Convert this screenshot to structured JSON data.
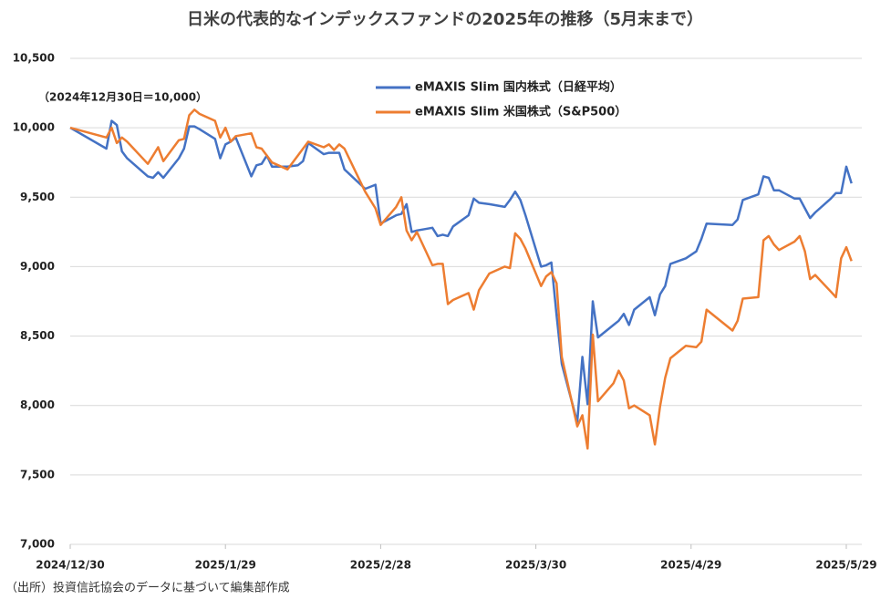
{
  "chart_data": {
    "type": "line",
    "title": "日米の代表的なインデックスファンドの2025年の推移（5月末まで）",
    "annotation": "（2024年12月30日＝10,000）",
    "source": "（出所）投資信託協会のデータに基づいて編集部作成",
    "x": [
      "2024/12/30",
      "2025/1/6",
      "2025/1/7",
      "2025/1/8",
      "2025/1/9",
      "2025/1/10",
      "2025/1/14",
      "2025/1/15",
      "2025/1/16",
      "2025/1/17",
      "2025/1/20",
      "2025/1/21",
      "2025/1/22",
      "2025/1/23",
      "2025/1/24",
      "2025/1/27",
      "2025/1/28",
      "2025/1/29",
      "2025/1/30",
      "2025/1/31",
      "2025/2/3",
      "2025/2/4",
      "2025/2/5",
      "2025/2/6",
      "2025/2/7",
      "2025/2/10",
      "2025/2/12",
      "2025/2/13",
      "2025/2/14",
      "2025/2/17",
      "2025/2/18",
      "2025/2/19",
      "2025/2/20",
      "2025/2/21",
      "2025/2/25",
      "2025/2/27",
      "2025/2/28",
      "2025/3/3",
      "2025/3/4",
      "2025/3/5",
      "2025/3/6",
      "2025/3/7",
      "2025/3/10",
      "2025/3/11",
      "2025/3/12",
      "2025/3/13",
      "2025/3/14",
      "2025/3/17",
      "2025/3/18",
      "2025/3/19",
      "2025/3/21",
      "2025/3/24",
      "2025/3/25",
      "2025/3/26",
      "2025/3/27",
      "2025/3/28",
      "2025/3/31",
      "2025/4/1",
      "2025/4/2",
      "2025/4/3",
      "2025/4/4",
      "2025/4/7",
      "2025/4/8",
      "2025/4/9",
      "2025/4/10",
      "2025/4/11",
      "2025/4/14",
      "2025/4/15",
      "2025/4/16",
      "2025/4/17",
      "2025/4/18",
      "2025/4/21",
      "2025/4/22",
      "2025/4/23",
      "2025/4/24",
      "2025/4/25",
      "2025/4/28",
      "2025/4/30",
      "2025/5/1",
      "2025/5/2",
      "2025/5/7",
      "2025/5/8",
      "2025/5/9",
      "2025/5/12",
      "2025/5/13",
      "2025/5/14",
      "2025/5/15",
      "2025/5/16",
      "2025/5/19",
      "2025/5/20",
      "2025/5/21",
      "2025/5/22",
      "2025/5/23",
      "2025/5/26",
      "2025/5/27",
      "2025/5/28",
      "2025/5/29",
      "2025/5/30"
    ],
    "series": [
      {
        "name": "eMAXIS Slim 国内株式（日経平均）",
        "color": "#4472c4",
        "values": [
          10000,
          9850,
          10050,
          10020,
          9830,
          9780,
          9650,
          9640,
          9680,
          9640,
          9780,
          9850,
          10010,
          10010,
          9990,
          9920,
          9780,
          9880,
          9900,
          9930,
          9650,
          9730,
          9740,
          9800,
          9720,
          9720,
          9730,
          9760,
          9890,
          9810,
          9820,
          9820,
          9820,
          9700,
          9560,
          9590,
          9310,
          9370,
          9380,
          9450,
          9250,
          9260,
          9280,
          9220,
          9230,
          9220,
          9290,
          9370,
          9490,
          9460,
          9450,
          9430,
          9480,
          9540,
          9480,
          9370,
          9000,
          9010,
          9030,
          8650,
          8300,
          7880,
          8350,
          8010,
          8750,
          8490,
          8580,
          8610,
          8660,
          8580,
          8690,
          8780,
          8650,
          8800,
          8860,
          9020,
          9060,
          9110,
          9200,
          9310,
          9300,
          9340,
          9480,
          9520,
          9650,
          9640,
          9550,
          9550,
          9490,
          9490,
          9420,
          9350,
          9390,
          9490,
          9530,
          9530,
          9720,
          9600
        ]
      },
      {
        "name": "eMAXIS Slim 米国株式（S&P500）",
        "color": "#ed7d31",
        "values": [
          10000,
          9930,
          10000,
          9890,
          9930,
          9900,
          9740,
          9800,
          9860,
          9760,
          9910,
          9920,
          10090,
          10130,
          10100,
          10050,
          9930,
          10000,
          9900,
          9940,
          9960,
          9860,
          9850,
          9800,
          9750,
          9700,
          9800,
          9850,
          9900,
          9860,
          9880,
          9840,
          9880,
          9850,
          9540,
          9420,
          9300,
          9430,
          9500,
          9260,
          9190,
          9250,
          9010,
          9020,
          9020,
          8730,
          8760,
          8810,
          8690,
          8830,
          8950,
          9000,
          8990,
          9240,
          9200,
          9130,
          8860,
          8930,
          8960,
          8880,
          8350,
          7850,
          7930,
          7690,
          8510,
          8030,
          8160,
          8250,
          8180,
          7980,
          8000,
          7930,
          7720,
          7990,
          8200,
          8340,
          8430,
          8420,
          8460,
          8690,
          8540,
          8610,
          8770,
          8780,
          9190,
          9220,
          9160,
          9120,
          9180,
          9220,
          9110,
          8910,
          8940,
          8820,
          8780,
          9060,
          9140,
          9040
        ]
      }
    ],
    "xlim": [
      "2024/12/30",
      "2025/6/1"
    ],
    "xticks": [
      "2024/12/30",
      "2025/1/29",
      "2025/2/28",
      "2025/3/30",
      "2025/4/29",
      "2025/5/29"
    ],
    "ylim": [
      7000,
      10500
    ],
    "yticks": [
      {
        "value": 7000,
        "label": "7,000"
      },
      {
        "value": 7500,
        "label": "7,500"
      },
      {
        "value": 8000,
        "label": "8,000"
      },
      {
        "value": 8500,
        "label": "8,500"
      },
      {
        "value": 9000,
        "label": "9,000"
      },
      {
        "value": 9500,
        "label": "9,500"
      },
      {
        "value": 10000,
        "label": "10,000"
      },
      {
        "value": 10500,
        "label": "10,500"
      }
    ],
    "grid": true
  }
}
